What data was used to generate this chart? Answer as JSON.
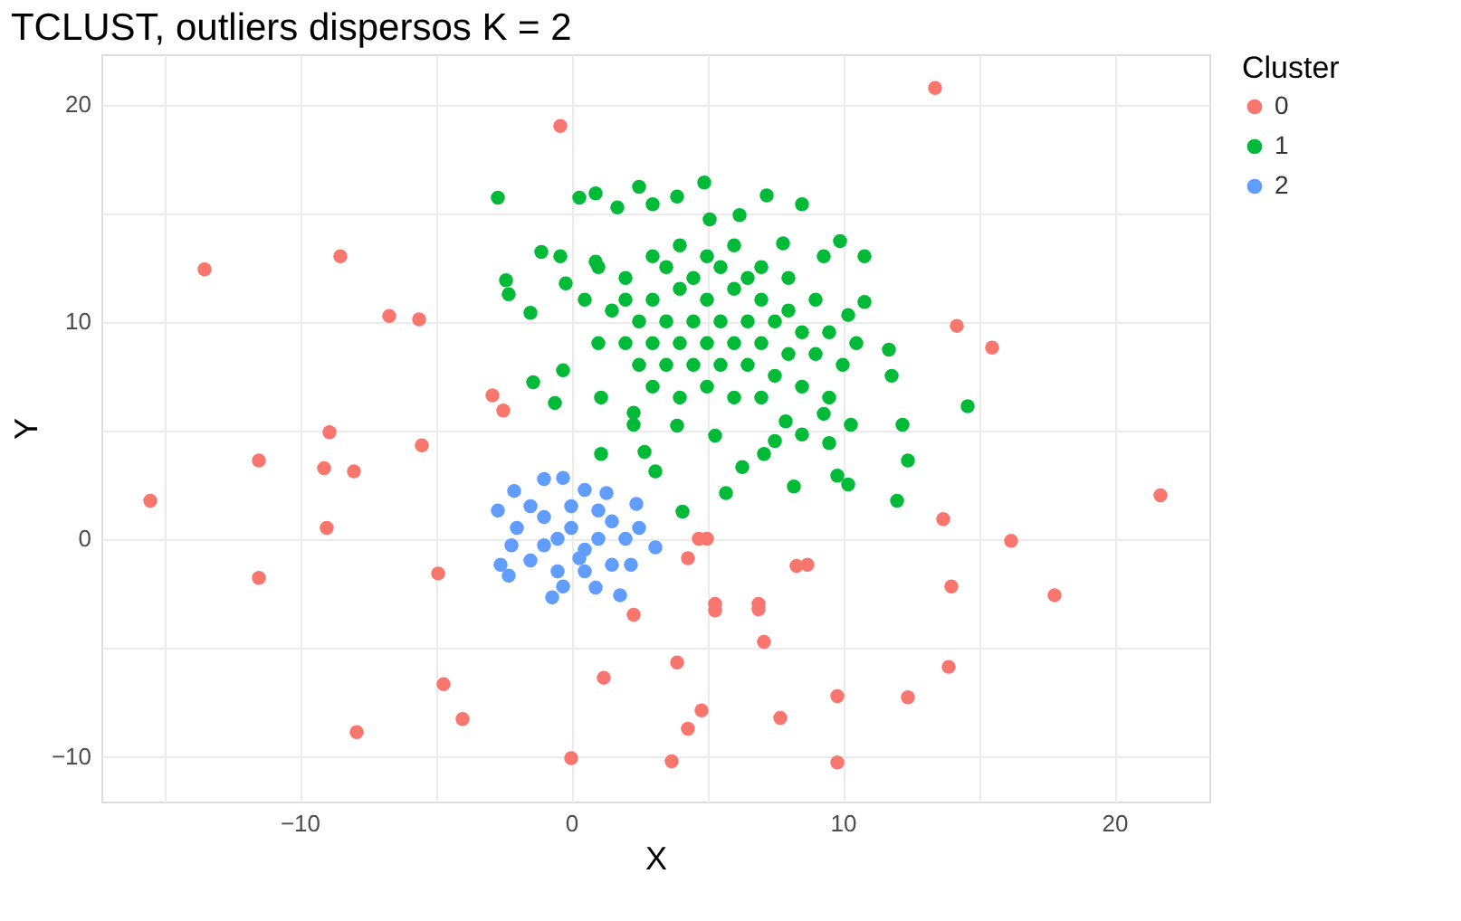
{
  "chart_data": {
    "type": "scatter",
    "title": "TCLUST, outliers dispersos K = 2",
    "xlabel": "X",
    "ylabel": "Y",
    "legend_title": "Cluster",
    "legend": "right",
    "grid": true,
    "marker": "circle",
    "xlim": [
      -17.3,
      23.5
    ],
    "ylim": [
      -12.1,
      22.3
    ],
    "xticks": [
      {
        "value": -15,
        "label": null
      },
      {
        "value": -10,
        "label": "−10"
      },
      {
        "value": -5,
        "label": null
      },
      0,
      {
        "value": 5,
        "label": null
      },
      10,
      {
        "value": 15,
        "label": null
      },
      20
    ],
    "yticks": [
      {
        "value": -10,
        "label": "−10"
      },
      {
        "value": -5,
        "label": null
      },
      0,
      {
        "value": 5,
        "label": null
      },
      10,
      {
        "value": 15,
        "label": null
      },
      20
    ],
    "series": [
      {
        "name": "0",
        "color": "#f8766d",
        "x": [
          13.4,
          -0.4,
          -13.5,
          -8.5,
          -6.7,
          -5.6,
          -2.9,
          -2.5,
          14.2,
          15.5,
          -8.9,
          -5.5,
          -11.5,
          -9.1,
          -8.0,
          -15.5,
          21.7,
          -9.0,
          13.7,
          16.2,
          -11.5,
          -4.9,
          4.7,
          5.0,
          4.3,
          8.3,
          8.7,
          14.0,
          17.8,
          2.3,
          5.3,
          5.3,
          6.9,
          6.9,
          7.1,
          3.9,
          13.9,
          1.2,
          -4.7,
          -4.0,
          4.8,
          7.7,
          9.8,
          12.4,
          -7.9,
          4.3,
          0.0,
          3.7,
          9.8
        ],
        "values": [
          20.75,
          19.0,
          12.4,
          13.0,
          10.25,
          10.1,
          6.6,
          5.9,
          9.8,
          8.8,
          4.9,
          4.3,
          3.6,
          3.25,
          3.1,
          1.75,
          2.0,
          0.5,
          0.9,
          -0.1,
          -1.8,
          -1.6,
          0.0,
          0.0,
          -0.9,
          -1.25,
          -1.2,
          -2.2,
          -2.6,
          -3.5,
          -3.0,
          -3.3,
          -3.0,
          -3.25,
          -4.75,
          -5.7,
          -5.9,
          -6.4,
          -6.7,
          -8.3,
          -7.9,
          -8.25,
          -7.25,
          -7.3,
          -8.9,
          -8.75,
          -10.1,
          -10.25,
          -10.3
        ]
      },
      {
        "name": "1",
        "color": "#00ba38",
        "x": [
          -2.7,
          0.3,
          0.9,
          2.5,
          4.9,
          7.2,
          8.5,
          9.9,
          10.8,
          10.8,
          11.7,
          11.8,
          14.6,
          12.2,
          12.4,
          12.0,
          10.2,
          9.8,
          8.2,
          5.7,
          6.3,
          4.1,
          3.1,
          2.7,
          1.1,
          -0.6,
          -1.4,
          -0.3,
          1.1,
          -2.3,
          -2.4,
          -1.5,
          -1.1,
          -0.4,
          -0.2,
          0.9,
          1.7,
          3.0,
          3.9,
          5.1,
          6.2,
          7.8,
          9.3,
          10.2,
          10.5,
          10.3,
          9.5,
          8.5,
          7.1,
          7.5,
          5.3,
          3.9,
          2.3,
          2.3,
          7.9,
          9.3,
          2,
          3,
          4,
          5,
          6,
          7,
          8,
          3,
          4,
          5,
          6,
          7,
          8,
          9,
          1.5,
          2.5,
          3.5,
          4.5,
          5.5,
          6.5,
          7.5,
          8.5,
          9,
          1,
          2,
          3,
          4,
          5,
          6,
          7,
          8,
          2.5,
          3.5,
          4.5,
          5.5,
          6.5,
          7.5,
          8.5,
          3,
          4,
          5,
          6,
          7,
          9.5,
          4.5,
          5.5,
          3.5,
          6.5,
          2,
          0.5,
          1,
          10,
          9.5
        ],
        "values": [
          15.7,
          15.7,
          15.9,
          16.2,
          16.4,
          15.8,
          15.4,
          13.7,
          13.0,
          10.9,
          8.7,
          7.5,
          6.1,
          5.25,
          3.6,
          1.75,
          2.5,
          2.9,
          2.4,
          2.1,
          3.3,
          1.25,
          3.1,
          4.0,
          3.9,
          6.25,
          7.2,
          7.75,
          6.5,
          11.25,
          11.9,
          10.4,
          13.2,
          13.0,
          11.75,
          12.75,
          15.25,
          15.4,
          15.75,
          14.7,
          14.9,
          13.6,
          13.0,
          10.3,
          9.0,
          5.25,
          4.4,
          4.8,
          3.9,
          4.5,
          4.75,
          5.2,
          5.25,
          5.8,
          5.4,
          5.75,
          12,
          13,
          13.5,
          13,
          13.5,
          12.5,
          12,
          11,
          11.5,
          11,
          11.5,
          11,
          10.5,
          11,
          10.5,
          10,
          10,
          10,
          10,
          10,
          10,
          9.5,
          8.5,
          9,
          9,
          9,
          9,
          9,
          9,
          9,
          8.5,
          8,
          8,
          8,
          8,
          8,
          7.5,
          7,
          7,
          6.5,
          7,
          6.5,
          6.5,
          6.5,
          12,
          12.5,
          12.5,
          12,
          11,
          11,
          12.5,
          8,
          9.5
        ]
      },
      {
        "name": "2",
        "color": "#619cff",
        "x": [
          -1.0,
          -0.3,
          -2.1,
          -2.7,
          -2.6,
          -2.3,
          -0.7,
          0.9,
          1.8,
          3.1,
          2.2,
          2.4,
          1.3,
          0.5,
          -2,
          -1.5,
          -1,
          -0.5,
          0,
          0.5,
          1,
          1.5,
          2,
          -1.5,
          -0.5,
          0.5,
          1.5,
          -2.2,
          0,
          1,
          -1,
          0.3,
          2.5,
          -0.3
        ],
        "values": [
          2.75,
          2.8,
          2.2,
          1.3,
          -1.2,
          -1.7,
          -2.7,
          -2.25,
          -2.6,
          -0.4,
          -1.2,
          1.6,
          2.1,
          2.25,
          0.5,
          1.5,
          1,
          0,
          0.5,
          -0.5,
          0,
          0.8,
          0,
          -1,
          -1.5,
          -1.5,
          -1.2,
          -0.3,
          1.5,
          1.3,
          -0.3,
          -0.9,
          0.5,
          -2.2
        ]
      }
    ]
  }
}
